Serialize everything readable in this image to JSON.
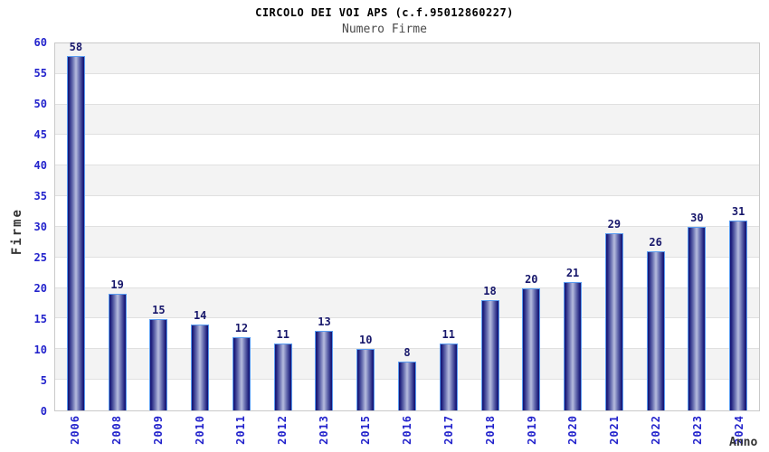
{
  "chart_data": {
    "type": "bar",
    "title": "CIRCOLO DEI VOI APS (c.f.95012860227)",
    "subtitle": "Numero Firme",
    "xlabel": "Anno",
    "ylabel": "Firme",
    "categories": [
      "2006",
      "2008",
      "2009",
      "2010",
      "2011",
      "2012",
      "2013",
      "2015",
      "2016",
      "2017",
      "2018",
      "2019",
      "2020",
      "2021",
      "2022",
      "2023",
      "2024"
    ],
    "values": [
      58,
      19,
      15,
      14,
      12,
      11,
      13,
      10,
      8,
      11,
      18,
      20,
      21,
      29,
      26,
      30,
      31
    ],
    "ylim": [
      0,
      60
    ],
    "y_ticks": [
      0,
      5,
      10,
      15,
      20,
      25,
      30,
      35,
      40,
      45,
      50,
      55,
      60
    ],
    "grid": "horizontal bands every 5 units, alternating gray/white",
    "legend": "none",
    "colors": {
      "bar_dark": "#181878",
      "bar_mid": "#6a71b2",
      "bar_light": "#b7bcde",
      "bar_border": "#5a9cf0",
      "tick_label": "#2323cc",
      "value_label": "#17176b",
      "axis_title": "#333333",
      "band_gray": "#f3f3f3",
      "gridline": "#e0e0e0",
      "plot_border": "#c9c9c9",
      "title_color": "#000000",
      "subtitle_color": "#4a4a4a"
    }
  }
}
